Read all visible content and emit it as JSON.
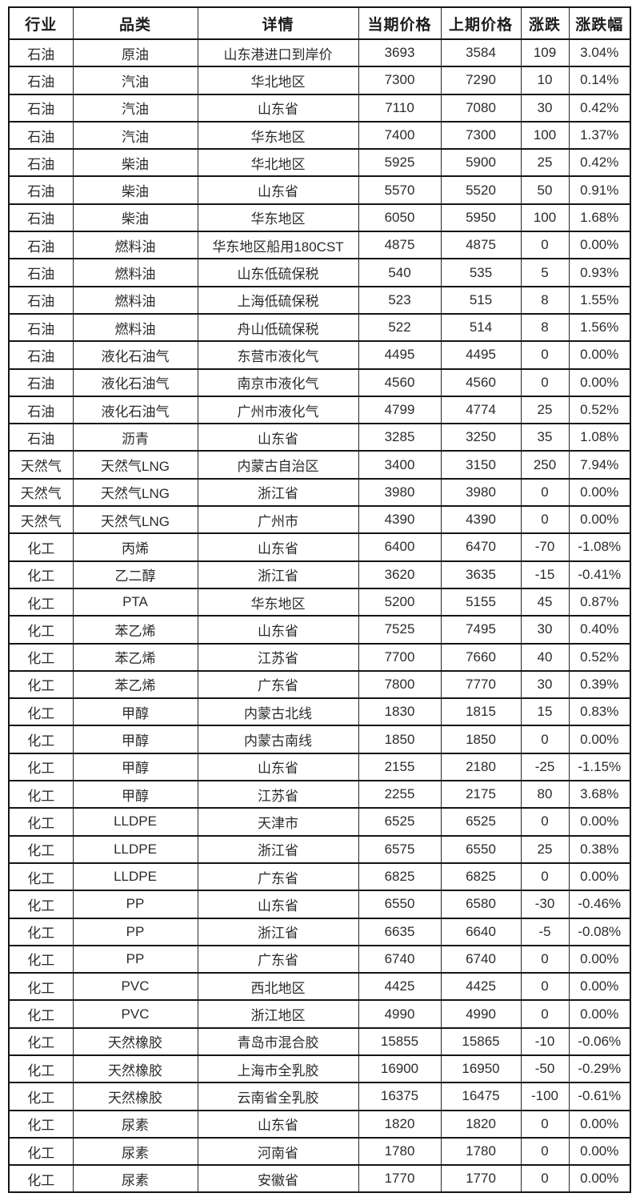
{
  "table": {
    "headers": [
      "行业",
      "品类",
      "详情",
      "当期价格",
      "上期价格",
      "涨跌",
      "涨跌幅"
    ],
    "column_keys": [
      "industry",
      "category",
      "detail",
      "current-price",
      "previous-price",
      "change",
      "change-pct"
    ],
    "rows": [
      [
        "石油",
        "原油",
        "山东港进口到岸价",
        "3693",
        "3584",
        "109",
        "3.04%"
      ],
      [
        "石油",
        "汽油",
        "华北地区",
        "7300",
        "7290",
        "10",
        "0.14%"
      ],
      [
        "石油",
        "汽油",
        "山东省",
        "7110",
        "7080",
        "30",
        "0.42%"
      ],
      [
        "石油",
        "汽油",
        "华东地区",
        "7400",
        "7300",
        "100",
        "1.37%"
      ],
      [
        "石油",
        "柴油",
        "华北地区",
        "5925",
        "5900",
        "25",
        "0.42%"
      ],
      [
        "石油",
        "柴油",
        "山东省",
        "5570",
        "5520",
        "50",
        "0.91%"
      ],
      [
        "石油",
        "柴油",
        "华东地区",
        "6050",
        "5950",
        "100",
        "1.68%"
      ],
      [
        "石油",
        "燃料油",
        "华东地区船用180CST",
        "4875",
        "4875",
        "0",
        "0.00%"
      ],
      [
        "石油",
        "燃料油",
        "山东低硫保税",
        "540",
        "535",
        "5",
        "0.93%"
      ],
      [
        "石油",
        "燃料油",
        "上海低硫保税",
        "523",
        "515",
        "8",
        "1.55%"
      ],
      [
        "石油",
        "燃料油",
        "舟山低硫保税",
        "522",
        "514",
        "8",
        "1.56%"
      ],
      [
        "石油",
        "液化石油气",
        "东营市液化气",
        "4495",
        "4495",
        "0",
        "0.00%"
      ],
      [
        "石油",
        "液化石油气",
        "南京市液化气",
        "4560",
        "4560",
        "0",
        "0.00%"
      ],
      [
        "石油",
        "液化石油气",
        "广州市液化气",
        "4799",
        "4774",
        "25",
        "0.52%"
      ],
      [
        "石油",
        "沥青",
        "山东省",
        "3285",
        "3250",
        "35",
        "1.08%"
      ],
      [
        "天然气",
        "天然气LNG",
        "内蒙古自治区",
        "3400",
        "3150",
        "250",
        "7.94%"
      ],
      [
        "天然气",
        "天然气LNG",
        "浙江省",
        "3980",
        "3980",
        "0",
        "0.00%"
      ],
      [
        "天然气",
        "天然气LNG",
        "广州市",
        "4390",
        "4390",
        "0",
        "0.00%"
      ],
      [
        "化工",
        "丙烯",
        "山东省",
        "6400",
        "6470",
        "-70",
        "-1.08%"
      ],
      [
        "化工",
        "乙二醇",
        "浙江省",
        "3620",
        "3635",
        "-15",
        "-0.41%"
      ],
      [
        "化工",
        "PTA",
        "华东地区",
        "5200",
        "5155",
        "45",
        "0.87%"
      ],
      [
        "化工",
        "苯乙烯",
        "山东省",
        "7525",
        "7495",
        "30",
        "0.40%"
      ],
      [
        "化工",
        "苯乙烯",
        "江苏省",
        "7700",
        "7660",
        "40",
        "0.52%"
      ],
      [
        "化工",
        "苯乙烯",
        "广东省",
        "7800",
        "7770",
        "30",
        "0.39%"
      ],
      [
        "化工",
        "甲醇",
        "内蒙古北线",
        "1830",
        "1815",
        "15",
        "0.83%"
      ],
      [
        "化工",
        "甲醇",
        "内蒙古南线",
        "1850",
        "1850",
        "0",
        "0.00%"
      ],
      [
        "化工",
        "甲醇",
        "山东省",
        "2155",
        "2180",
        "-25",
        "-1.15%"
      ],
      [
        "化工",
        "甲醇",
        "江苏省",
        "2255",
        "2175",
        "80",
        "3.68%"
      ],
      [
        "化工",
        "LLDPE",
        "天津市",
        "6525",
        "6525",
        "0",
        "0.00%"
      ],
      [
        "化工",
        "LLDPE",
        "浙江省",
        "6575",
        "6550",
        "25",
        "0.38%"
      ],
      [
        "化工",
        "LLDPE",
        "广东省",
        "6825",
        "6825",
        "0",
        "0.00%"
      ],
      [
        "化工",
        "PP",
        "山东省",
        "6550",
        "6580",
        "-30",
        "-0.46%"
      ],
      [
        "化工",
        "PP",
        "浙江省",
        "6635",
        "6640",
        "-5",
        "-0.08%"
      ],
      [
        "化工",
        "PP",
        "广东省",
        "6740",
        "6740",
        "0",
        "0.00%"
      ],
      [
        "化工",
        "PVC",
        "西北地区",
        "4425",
        "4425",
        "0",
        "0.00%"
      ],
      [
        "化工",
        "PVC",
        "浙江地区",
        "4990",
        "4990",
        "0",
        "0.00%"
      ],
      [
        "化工",
        "天然橡胶",
        "青岛市混合胶",
        "15855",
        "15865",
        "-10",
        "-0.06%"
      ],
      [
        "化工",
        "天然橡胶",
        "上海市全乳胶",
        "16900",
        "16950",
        "-50",
        "-0.29%"
      ],
      [
        "化工",
        "天然橡胶",
        "云南省全乳胶",
        "16375",
        "16475",
        "-100",
        "-0.61%"
      ],
      [
        "化工",
        "尿素",
        "山东省",
        "1820",
        "1820",
        "0",
        "0.00%"
      ],
      [
        "化工",
        "尿素",
        "河南省",
        "1780",
        "1780",
        "0",
        "0.00%"
      ],
      [
        "化工",
        "尿素",
        "安徽省",
        "1770",
        "1770",
        "0",
        "0.00%"
      ]
    ]
  },
  "colors": {
    "border": "#151515",
    "text": "#2b2b2b",
    "background": "#ffffff"
  }
}
